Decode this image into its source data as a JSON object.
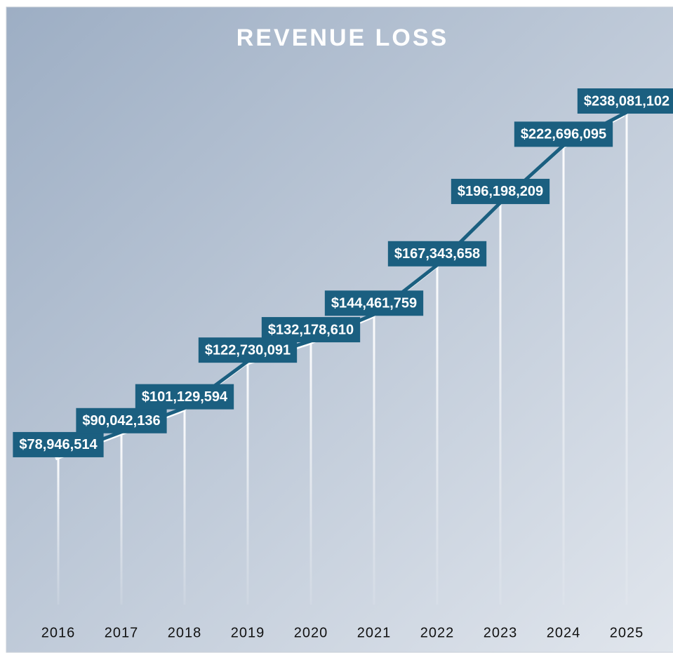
{
  "chart_data": {
    "type": "line",
    "title": "REVENUE LOSS",
    "categories": [
      "2016",
      "2017",
      "2018",
      "2019",
      "2020",
      "2021",
      "2022",
      "2023",
      "2024",
      "2025"
    ],
    "values": [
      78946514,
      90042136,
      101129594,
      122730091,
      132178610,
      144461759,
      167343658,
      196198209,
      222696095,
      238081102
    ],
    "value_labels": [
      "$78,946,514",
      "$90,042,136",
      "$101,129,594",
      "$122,730,091",
      "$132,178,610",
      "$144,461,759",
      "$167,343,658",
      "$196,198,209",
      "$222,696,095",
      "$238,081,102"
    ],
    "color": "#1b5f80"
  }
}
